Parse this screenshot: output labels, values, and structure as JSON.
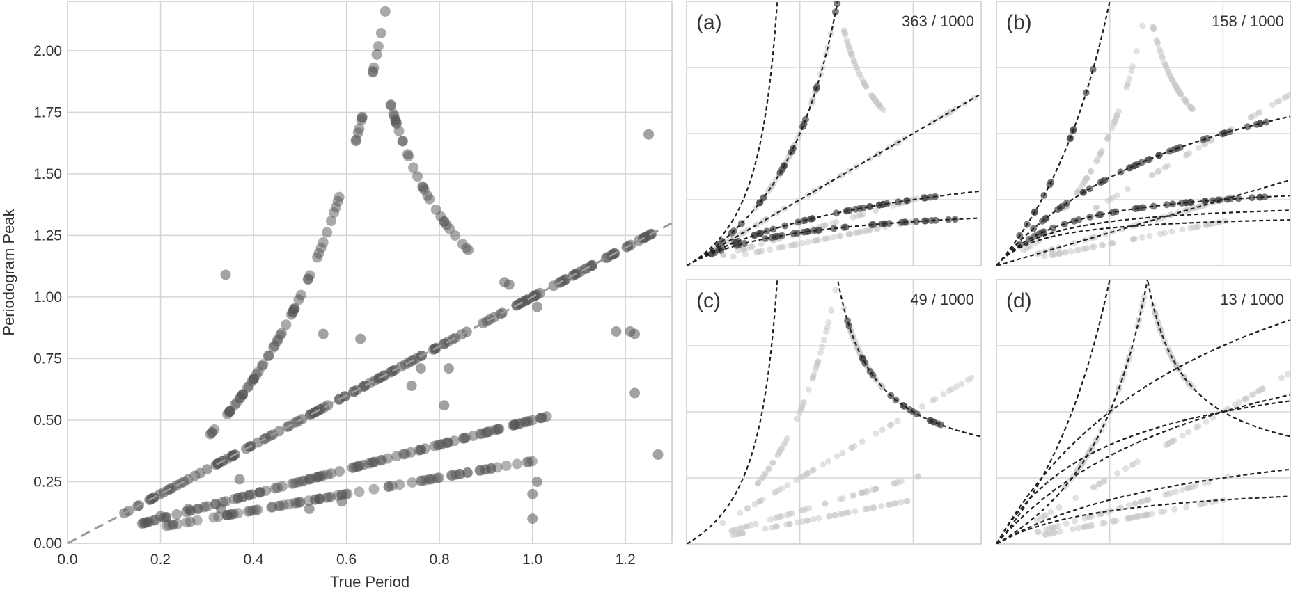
{
  "chart_data": [
    {
      "type": "scatter",
      "xlabel": "True Period",
      "ylabel": "Periodogram Peak",
      "xlim": [
        0.0,
        1.3
      ],
      "ylim": [
        0.0,
        2.2
      ],
      "xticks": [
        "0.0",
        "0.2",
        "0.4",
        "0.6",
        "0.8",
        "1.0",
        "1.2"
      ],
      "yticks": [
        "0.00",
        "0.25",
        "0.50",
        "0.75",
        "1.00",
        "1.25",
        "1.50",
        "1.75",
        "2.00"
      ],
      "grid": true,
      "point_color": "#555555",
      "reference_line": {
        "label": "",
        "slope": 1,
        "style": "dashed",
        "color": "#999999"
      },
      "series": [
        {
          "relation": "y = x",
          "x_range": [
            0.12,
            1.26
          ]
        },
        {
          "relation": "y = x/2",
          "x_range": [
            0.16,
            1.04
          ]
        },
        {
          "relation": "y = x/3",
          "x_range": [
            0.2,
            1.02
          ]
        },
        {
          "relation": "y = x/(1-x)",
          "x_range": [
            0.3,
            0.685
          ]
        },
        {
          "relation": "y = x/(2x-1)",
          "x_range": [
            0.685,
            0.87
          ]
        }
      ],
      "outliers": [
        [
          0.34,
          1.09
        ],
        [
          0.55,
          0.85
        ],
        [
          0.63,
          0.83
        ],
        [
          0.79,
          0.79
        ],
        [
          0.74,
          0.64
        ],
        [
          0.76,
          0.71
        ],
        [
          0.82,
          0.71
        ],
        [
          0.81,
          0.56
        ],
        [
          0.94,
          1.06
        ],
        [
          0.95,
          1.05
        ],
        [
          1.01,
          0.96
        ],
        [
          1.18,
          0.86
        ],
        [
          1.21,
          0.86
        ],
        [
          1.22,
          0.85
        ],
        [
          1.25,
          1.66
        ],
        [
          1.27,
          0.36
        ],
        [
          1.22,
          0.61
        ],
        [
          1.0,
          0.1
        ],
        [
          1.0,
          0.2
        ],
        [
          1.01,
          0.25
        ],
        [
          0.2,
          0.11
        ],
        [
          0.26,
          0.14
        ],
        [
          0.33,
          0.14
        ],
        [
          0.37,
          0.26
        ],
        [
          0.59,
          0.17
        ],
        [
          0.52,
          0.14
        ]
      ]
    },
    {
      "panel": "(a)",
      "count": "363 / 1000",
      "type": "scatter",
      "curves": [
        {
          "relation": "y = x/(1-2x)"
        },
        {
          "relation": "y = x/(1-x)",
          "highlighted": true
        },
        {
          "relation": "y = x",
          "highlighted": false
        },
        {
          "relation": "y = x/(1+x)",
          "highlighted": true
        },
        {
          "relation": "y = x/(1+2x)",
          "highlighted": true
        }
      ]
    },
    {
      "panel": "(b)",
      "count": "158 / 1000",
      "type": "scatter",
      "curves": [
        {
          "relation": "y = 2x/(1-x)",
          "highlighted": true
        },
        {
          "relation": "y = 2x/(1+x)",
          "highlighted": true
        },
        {
          "relation": "y = 2x/(1+3x)",
          "highlighted": true
        },
        {
          "relation": "y = x/2"
        },
        {
          "relation": "y = 2x/(1+4x)"
        },
        {
          "relation": "y = 2x/(1+5x)"
        }
      ]
    },
    {
      "panel": "(c)",
      "count": "49 / 1000",
      "type": "scatter",
      "curves": [
        {
          "relation": "y = x/(2x-1)",
          "highlighted": true
        },
        {
          "relation": "y = x/(1-2x)"
        }
      ]
    },
    {
      "panel": "(d)",
      "count": "13 / 1000",
      "type": "scatter",
      "curves": [
        {
          "relation": "y = x/(1-x)"
        },
        {
          "relation": "y = x/(2x-1)"
        },
        {
          "relation": "y = 2x/(1-x)"
        },
        {
          "relation": "y = x/(1+x)"
        },
        {
          "relation": "y = 2x/(1+x)"
        },
        {
          "relation": "y = 3x/(1+x)"
        },
        {
          "relation": "y = 3x/(1+2x)"
        },
        {
          "relation": "y = x/(1+2x)"
        }
      ]
    }
  ]
}
